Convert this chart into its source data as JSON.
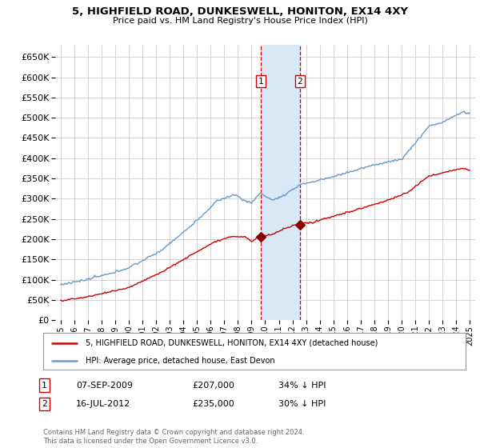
{
  "title": "5, HIGHFIELD ROAD, DUNKESWELL, HONITON, EX14 4XY",
  "subtitle": "Price paid vs. HM Land Registry's House Price Index (HPI)",
  "hpi_label": "HPI: Average price, detached house, East Devon",
  "property_label": "5, HIGHFIELD ROAD, DUNKESWELL, HONITON, EX14 4XY (detached house)",
  "footnote": "Contains HM Land Registry data © Crown copyright and database right 2024.\nThis data is licensed under the Open Government Licence v3.0.",
  "sale1_date": "07-SEP-2009",
  "sale1_price": 207000,
  "sale1_pct": "34% ↓ HPI",
  "sale1_label": "1",
  "sale1_year": 2009.67,
  "sale2_date": "16-JUL-2012",
  "sale2_price": 235000,
  "sale2_pct": "30% ↓ HPI",
  "sale2_label": "2",
  "sale2_year": 2012.54,
  "hpi_color": "#6699CC",
  "property_color": "#CC0000",
  "sale_marker_color": "#880000",
  "shading_color": "#D8E8F5",
  "vline_color": "#CC0000",
  "background_color": "#ffffff",
  "grid_color": "#cccccc",
  "ylim": [
    0,
    680000
  ],
  "yticks": [
    0,
    50000,
    100000,
    150000,
    200000,
    250000,
    300000,
    350000,
    400000,
    450000,
    500000,
    550000,
    600000,
    650000
  ],
  "xlabel_years": [
    "1995",
    "1996",
    "1997",
    "1998",
    "1999",
    "2000",
    "2001",
    "2002",
    "2003",
    "2004",
    "2005",
    "2006",
    "2007",
    "2008",
    "2009",
    "2010",
    "2011",
    "2012",
    "2013",
    "2014",
    "2015",
    "2016",
    "2017",
    "2018",
    "2019",
    "2020",
    "2021",
    "2022",
    "2023",
    "2024",
    "2025"
  ]
}
